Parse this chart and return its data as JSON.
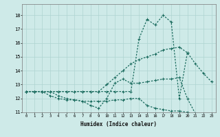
{
  "xlabel": "Humidex (Indice chaleur)",
  "background_color": "#ceeae8",
  "grid_color": "#aed4d0",
  "line_color": "#1a6b5e",
  "xlim": [
    -0.5,
    23.5
  ],
  "ylim": [
    11.0,
    18.8
  ],
  "yticks": [
    11,
    12,
    13,
    14,
    15,
    16,
    17,
    18
  ],
  "xticks": [
    0,
    1,
    2,
    3,
    4,
    5,
    6,
    7,
    8,
    9,
    10,
    11,
    12,
    13,
    14,
    15,
    16,
    17,
    18,
    19,
    20,
    21,
    22,
    23
  ],
  "series": [
    {
      "x": [
        0,
        1,
        2,
        3,
        4,
        5,
        6,
        7,
        8,
        9,
        10,
        11,
        12,
        13,
        14,
        15,
        16,
        17,
        18,
        19,
        20
      ],
      "y": [
        12.5,
        12.5,
        12.5,
        12.5,
        12.5,
        12.5,
        12.5,
        12.5,
        12.5,
        12.5,
        12.5,
        12.5,
        12.5,
        12.5,
        16.3,
        17.7,
        17.3,
        18.0,
        17.5,
        12.0,
        15.3
      ]
    },
    {
      "x": [
        0,
        1,
        2,
        3,
        4,
        5,
        6,
        7,
        8,
        9,
        10,
        11,
        12,
        13,
        14,
        15,
        16,
        17,
        18,
        19,
        20,
        21,
        22,
        23
      ],
      "y": [
        12.5,
        12.5,
        12.5,
        12.5,
        12.5,
        12.5,
        12.5,
        12.5,
        12.5,
        12.5,
        13.0,
        13.5,
        14.0,
        14.5,
        14.8,
        15.0,
        15.2,
        15.5,
        15.6,
        15.7,
        15.3,
        14.5,
        13.8,
        13.2
      ]
    },
    {
      "x": [
        0,
        1,
        2,
        3,
        4,
        5,
        6,
        7,
        8,
        9,
        10,
        11,
        12,
        13,
        14,
        15,
        16,
        17,
        18,
        19,
        20,
        21,
        22,
        23
      ],
      "y": [
        12.5,
        12.5,
        12.5,
        12.5,
        12.2,
        12.0,
        11.9,
        11.8,
        11.5,
        11.3,
        12.0,
        13.1,
        13.4,
        13.1,
        13.1,
        13.2,
        13.3,
        13.4,
        13.4,
        13.5,
        12.0,
        10.9,
        10.8,
        10.75
      ]
    },
    {
      "x": [
        0,
        1,
        2,
        3,
        4,
        5,
        6,
        7,
        8,
        9,
        10,
        11,
        12,
        13,
        14,
        15,
        16,
        17,
        18,
        19,
        20,
        21,
        22,
        23
      ],
      "y": [
        12.5,
        12.5,
        12.5,
        12.2,
        12.0,
        11.9,
        11.9,
        11.8,
        11.8,
        11.8,
        11.8,
        11.9,
        11.9,
        12.0,
        12.0,
        11.5,
        11.3,
        11.2,
        11.1,
        11.1,
        11.0,
        10.9,
        10.8,
        10.75
      ]
    }
  ]
}
